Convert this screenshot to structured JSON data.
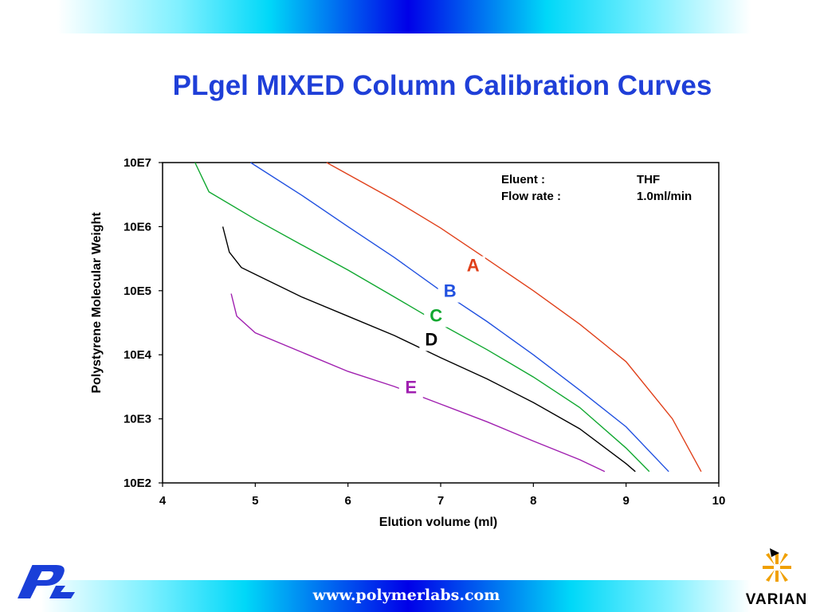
{
  "slide": {
    "title": "PLgel MIXED Column Calibration Curves",
    "website": "www.polymerlabs.com",
    "company_logo_text": "VARIAN",
    "brand_logo_text": "PL"
  },
  "colors": {
    "title": "#1f3fd8",
    "A": "#e0401a",
    "B": "#2050e0",
    "C": "#10a830",
    "D": "#000000",
    "E": "#a020b0"
  },
  "chart_data": {
    "type": "line",
    "title": "",
    "xlabel": "Elution volume (ml)",
    "ylabel": "Polystyrene Molecular Weight",
    "xlim": [
      4,
      10
    ],
    "ylim": [
      100,
      10000000
    ],
    "y_scale": "log",
    "grid": false,
    "x_ticks": [
      "4",
      "5",
      "6",
      "7",
      "8",
      "9",
      "10"
    ],
    "y_ticks": [
      "10E7",
      "10E6",
      "10E5",
      "10E4",
      "10E3",
      "10E2"
    ],
    "annotation": {
      "rows": [
        {
          "label": "Eluent :",
          "value": "THF"
        },
        {
          "label": "Flow rate :",
          "value": "1.0ml/min"
        }
      ]
    },
    "series": [
      {
        "name": "A",
        "color": "#e0401a",
        "label_position": [
          7.35,
          200000
        ],
        "x": [
          5.77,
          6.5,
          7.0,
          7.5,
          8.0,
          8.5,
          9.0,
          9.5,
          9.81
        ],
        "y": [
          10000000,
          2600000,
          950000,
          310000,
          100000,
          30000,
          7800,
          1000,
          150
        ]
      },
      {
        "name": "B",
        "color": "#2050e0",
        "label_position": [
          7.1,
          80000
        ],
        "x": [
          4.95,
          5.5,
          6.0,
          6.5,
          7.0,
          7.5,
          8.0,
          8.5,
          9.0,
          9.46
        ],
        "y": [
          10000000,
          3100000,
          1000000,
          330000,
          100000,
          33000,
          10000,
          2800,
          750,
          150
        ]
      },
      {
        "name": "C",
        "color": "#10a830",
        "label_position": [
          6.95,
          33000
        ],
        "x": [
          4.35,
          4.5,
          5.0,
          5.5,
          6.0,
          6.5,
          7.0,
          7.5,
          8.0,
          8.5,
          9.0,
          9.25
        ],
        "y": [
          10000000,
          3500000,
          1300000,
          520000,
          210000,
          80000,
          30000,
          12000,
          4500,
          1500,
          350,
          150
        ]
      },
      {
        "name": "D",
        "color": "#000000",
        "label_position": [
          6.9,
          14000
        ],
        "x": [
          4.65,
          4.72,
          4.85,
          5.0,
          5.5,
          6.0,
          6.5,
          7.0,
          7.5,
          8.0,
          8.5,
          9.0,
          9.1
        ],
        "y": [
          1000000,
          400000,
          230000,
          180000,
          80000,
          40000,
          20000,
          9000,
          4200,
          1800,
          700,
          200,
          150
        ]
      },
      {
        "name": "E",
        "color": "#a020b0",
        "label_position": [
          6.68,
          2500
        ],
        "x": [
          4.74,
          4.8,
          5.0,
          5.5,
          6.0,
          6.5,
          7.0,
          7.5,
          8.0,
          8.5,
          8.77
        ],
        "y": [
          90000,
          40000,
          22000,
          11000,
          5500,
          3200,
          1700,
          900,
          450,
          230,
          150
        ]
      }
    ]
  }
}
